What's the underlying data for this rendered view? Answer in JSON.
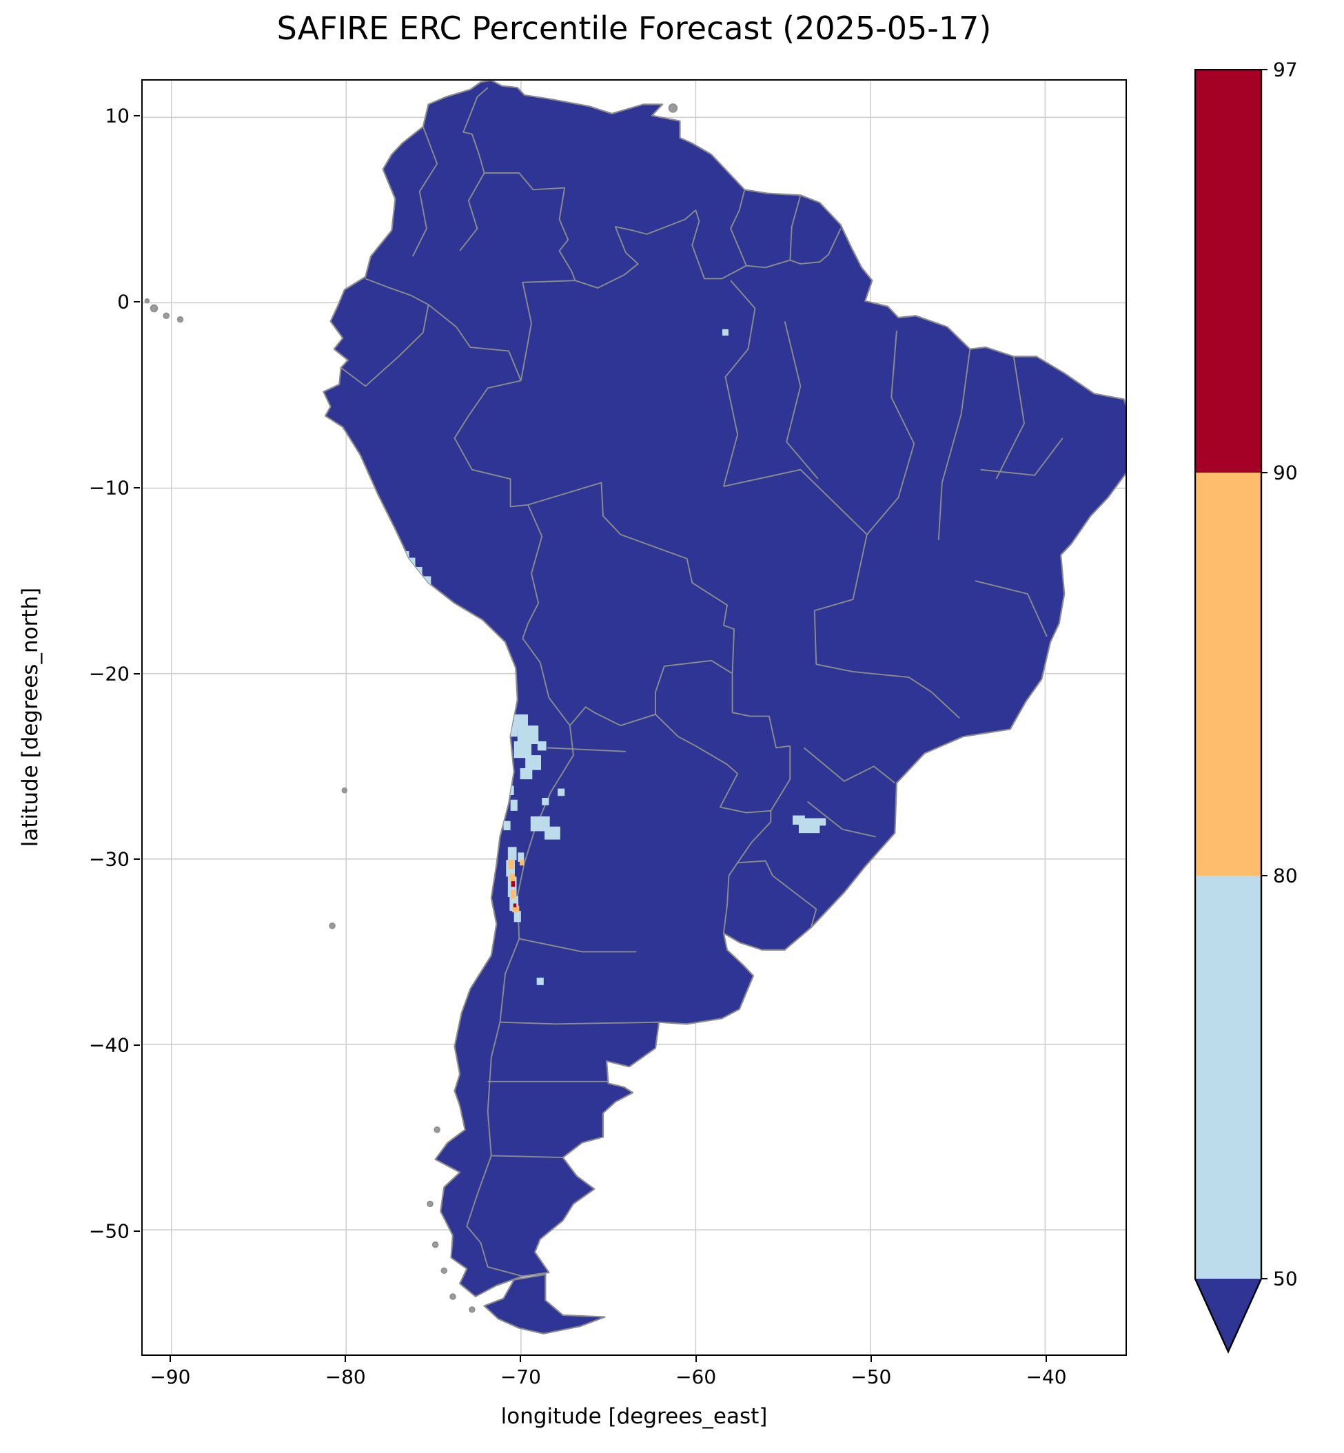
{
  "title": "SAFIRE ERC Percentile Forecast (2025-05-17)",
  "axes": {
    "xlabel": "longitude [degrees_east]",
    "ylabel": "latitude [degrees_north]",
    "x_ticks": [
      -90,
      -80,
      -70,
      -60,
      -50,
      -40
    ],
    "x_tick_labels": [
      "−90",
      "−80",
      "−70",
      "−60",
      "−50",
      "−40"
    ],
    "y_ticks": [
      10,
      0,
      -10,
      -20,
      -30,
      -40,
      -50
    ],
    "y_tick_labels": [
      "10",
      "0",
      "−10",
      "−20",
      "−30",
      "−40",
      "−50"
    ],
    "lon_range": [
      -91.65,
      -35.4
    ],
    "lat_range": [
      -56.7,
      11.96
    ],
    "grid": true
  },
  "colorbar": {
    "levels": [
      50,
      80,
      90,
      97
    ],
    "tick_labels": [
      "50",
      "80",
      "90",
      "97"
    ],
    "segment_colors": [
      "#bcdcec",
      "#fdbd6d",
      "#a50026"
    ],
    "under_color": "#2e3594",
    "extend": "min"
  },
  "map": {
    "land_base_color": "#2e3594",
    "border_color": "#8c8c8c",
    "grid_color": "#cfcfcf",
    "ocean_color": "#ffffff"
  },
  "chart_data": {
    "type": "heatmap",
    "title": "SAFIRE ERC Percentile Forecast (2025-05-17)",
    "xlabel": "longitude [degrees_east]",
    "ylabel": "latitude [degrees_north]",
    "xlim": [
      -91.65,
      -35.4
    ],
    "ylim": [
      -56.7,
      11.96
    ],
    "legend_position": "right-colorbar",
    "colorbar_levels": [
      50,
      80,
      90,
      97
    ],
    "colorbar_colors": {
      "50-80": "#bcdcec",
      "80-90": "#fdbd6d",
      "90-97": "#a50026",
      "under_50": "#2e3594"
    },
    "base_field": "ERC percentile below 50 over nearly all land (dark blue)",
    "anomalies": [
      {
        "lon": -76.3,
        "lat": -14.0,
        "w": 0.5,
        "h": 0.5,
        "band": "50-80"
      },
      {
        "lon": -75.9,
        "lat": -14.5,
        "w": 0.5,
        "h": 0.5,
        "band": "50-80"
      },
      {
        "lon": -75.4,
        "lat": -15.0,
        "w": 0.5,
        "h": 0.5,
        "band": "50-80"
      },
      {
        "lon": -76.6,
        "lat": -13.6,
        "w": 0.4,
        "h": 0.4,
        "band": "50-80"
      },
      {
        "lon": -70.0,
        "lat": -22.6,
        "w": 0.8,
        "h": 0.8,
        "band": "50-80"
      },
      {
        "lon": -69.6,
        "lat": -23.3,
        "w": 1.2,
        "h": 1.0,
        "band": "50-80"
      },
      {
        "lon": -69.9,
        "lat": -24.1,
        "w": 1.0,
        "h": 0.9,
        "band": "50-80"
      },
      {
        "lon": -69.3,
        "lat": -24.8,
        "w": 0.9,
        "h": 0.8,
        "band": "50-80"
      },
      {
        "lon": -69.7,
        "lat": -25.4,
        "w": 0.7,
        "h": 0.6,
        "band": "50-80"
      },
      {
        "lon": -70.4,
        "lat": -23.0,
        "w": 0.4,
        "h": 0.8,
        "band": "50-80"
      },
      {
        "lon": -68.8,
        "lat": -23.9,
        "w": 0.5,
        "h": 0.5,
        "band": "50-80"
      },
      {
        "lon": -70.6,
        "lat": -26.3,
        "w": 0.4,
        "h": 0.5,
        "band": "50-80"
      },
      {
        "lon": -70.4,
        "lat": -27.1,
        "w": 0.4,
        "h": 0.6,
        "band": "50-80"
      },
      {
        "lon": -70.8,
        "lat": -28.2,
        "w": 0.4,
        "h": 0.5,
        "band": "50-80"
      },
      {
        "lon": -68.9,
        "lat": -28.1,
        "w": 1.1,
        "h": 0.8,
        "band": "50-80"
      },
      {
        "lon": -68.2,
        "lat": -28.6,
        "w": 0.9,
        "h": 0.7,
        "band": "50-80"
      },
      {
        "lon": -67.7,
        "lat": -26.4,
        "w": 0.4,
        "h": 0.4,
        "band": "50-80"
      },
      {
        "lon": -68.6,
        "lat": -26.9,
        "w": 0.4,
        "h": 0.4,
        "band": "50-80"
      },
      {
        "lon": -70.5,
        "lat": -29.7,
        "w": 0.5,
        "h": 0.7,
        "band": "50-80"
      },
      {
        "lon": -70.6,
        "lat": -30.5,
        "w": 0.5,
        "h": 0.9,
        "band": "50-80"
      },
      {
        "lon": -70.5,
        "lat": -31.5,
        "w": 0.5,
        "h": 1.1,
        "band": "50-80"
      },
      {
        "lon": -70.4,
        "lat": -32.4,
        "w": 0.5,
        "h": 0.8,
        "band": "50-80"
      },
      {
        "lon": -70.2,
        "lat": -33.1,
        "w": 0.4,
        "h": 0.6,
        "band": "50-80"
      },
      {
        "lon": -70.0,
        "lat": -29.9,
        "w": 0.35,
        "h": 0.5,
        "band": "50-80"
      },
      {
        "lon": -54.1,
        "lat": -27.9,
        "w": 0.7,
        "h": 0.5,
        "band": "50-80"
      },
      {
        "lon": -53.5,
        "lat": -28.2,
        "w": 1.2,
        "h": 0.8,
        "band": "50-80"
      },
      {
        "lon": -52.8,
        "lat": -28.0,
        "w": 0.5,
        "h": 0.4,
        "band": "50-80"
      },
      {
        "lon": -58.3,
        "lat": -1.6,
        "w": 0.35,
        "h": 0.35,
        "band": "50-80"
      },
      {
        "lon": -68.9,
        "lat": -36.6,
        "w": 0.4,
        "h": 0.4,
        "band": "50-80"
      },
      {
        "lon": -70.55,
        "lat": -30.3,
        "w": 0.3,
        "h": 0.5,
        "band": "80-90"
      },
      {
        "lon": -70.5,
        "lat": -31.0,
        "w": 0.3,
        "h": 0.4,
        "band": "80-90"
      },
      {
        "lon": -70.45,
        "lat": -31.9,
        "w": 0.28,
        "h": 0.5,
        "band": "80-90"
      },
      {
        "lon": -70.3,
        "lat": -32.7,
        "w": 0.4,
        "h": 0.35,
        "band": "80-90"
      },
      {
        "lon": -69.95,
        "lat": -30.2,
        "w": 0.25,
        "h": 0.3,
        "band": "80-90"
      },
      {
        "lon": -70.45,
        "lat": -31.35,
        "w": 0.22,
        "h": 0.3,
        "band": "90-97"
      },
      {
        "lon": -70.35,
        "lat": -32.5,
        "w": 0.18,
        "h": 0.2,
        "band": "90-97"
      }
    ]
  }
}
